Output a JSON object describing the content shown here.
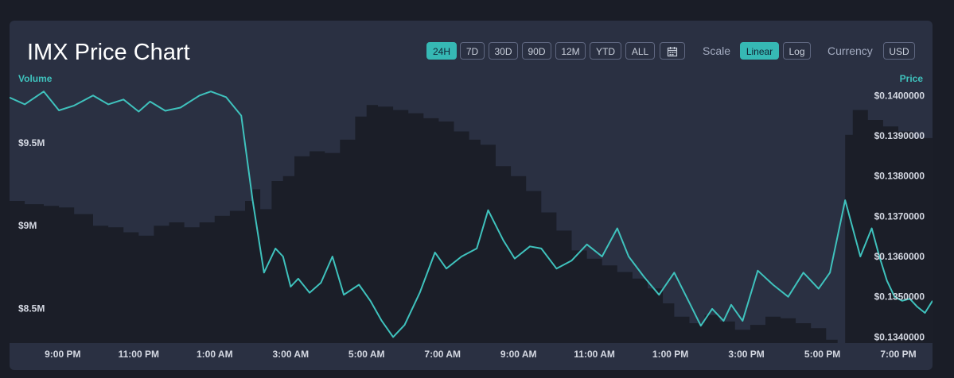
{
  "title": "IMX Price Chart",
  "ranges": [
    "24H",
    "7D",
    "30D",
    "90D",
    "12M",
    "YTD",
    "ALL"
  ],
  "active_range": "24H",
  "calendar_icon": "calendar-icon",
  "scale": {
    "label": "Scale",
    "options": [
      "Linear",
      "Log"
    ],
    "active": "Linear"
  },
  "currency": {
    "label": "Currency",
    "value": "USD"
  },
  "colors": {
    "accent": "#36b8b4",
    "price_line": "#3fc2bd",
    "volume_fill": "#1b1e28",
    "card": "#2a3042"
  },
  "chart_data": {
    "type": "line",
    "title": "IMX Price Chart",
    "ylabel_left": "Volume",
    "ylabel_right": "Price",
    "x_ticks": [
      "9:00 PM",
      "11:00 PM",
      "1:00 AM",
      "3:00 AM",
      "5:00 AM",
      "7:00 AM",
      "9:00 AM",
      "11:00 AM",
      "1:00 PM",
      "3:00 PM",
      "5:00 PM",
      "7:00 PM"
    ],
    "x_range": [
      19.6,
      43.9
    ],
    "price_ticks": [
      "$0.1400000",
      "$0.1390000",
      "$0.1380000",
      "$0.1370000",
      "$0.1360000",
      "$0.1350000",
      "$0.1340000"
    ],
    "price_ylim": [
      0.13385,
      0.14038
    ],
    "volume_ticks": [
      "$9.5M",
      "$9M",
      "$8.5M"
    ],
    "volume_ylim": [
      8.29,
      9.88
    ],
    "grid": false,
    "series": [
      {
        "name": "Price",
        "x": [
          19.6,
          20.0,
          20.5,
          20.9,
          21.3,
          21.8,
          22.2,
          22.6,
          23.0,
          23.3,
          23.7,
          24.1,
          24.6,
          24.9,
          25.3,
          25.7,
          26.0,
          26.3,
          26.6,
          26.8,
          27.0,
          27.2,
          27.5,
          27.8,
          28.1,
          28.4,
          28.8,
          29.1,
          29.4,
          29.7,
          30.0,
          30.4,
          30.8,
          31.1,
          31.5,
          31.9,
          32.2,
          32.6,
          32.9,
          33.3,
          33.6,
          34.0,
          34.4,
          34.8,
          35.2,
          35.6,
          35.9,
          36.3,
          36.7,
          37.1,
          37.5,
          37.8,
          38.1,
          38.4,
          38.6,
          38.9,
          39.3,
          39.7,
          40.1,
          40.5,
          40.9,
          41.2,
          41.6,
          42.0,
          42.3,
          42.5,
          42.7,
          42.9,
          43.1,
          43.3,
          43.5,
          43.7,
          43.9
        ],
        "values": [
          0.13995,
          0.13978,
          0.1401,
          0.13963,
          0.13975,
          0.14,
          0.13978,
          0.1399,
          0.1396,
          0.13985,
          0.13962,
          0.1397,
          0.14,
          0.1401,
          0.13996,
          0.1395,
          0.1374,
          0.1356,
          0.1362,
          0.136,
          0.13525,
          0.13545,
          0.1351,
          0.13535,
          0.136,
          0.13505,
          0.1353,
          0.1349,
          0.1344,
          0.134,
          0.1343,
          0.1351,
          0.1361,
          0.1357,
          0.136,
          0.1362,
          0.13715,
          0.1364,
          0.13595,
          0.13625,
          0.1362,
          0.1357,
          0.1359,
          0.1363,
          0.136,
          0.1367,
          0.136,
          0.1355,
          0.13505,
          0.1356,
          0.13485,
          0.13428,
          0.1347,
          0.1344,
          0.1348,
          0.1344,
          0.13565,
          0.1353,
          0.135,
          0.1356,
          0.1352,
          0.1356,
          0.1374,
          0.136,
          0.1367,
          0.136,
          0.1354,
          0.135,
          0.1349,
          0.13495,
          0.13475,
          0.1346,
          0.1349
        ]
      },
      {
        "name": "Volume",
        "x": [
          19.6,
          20.0,
          20.5,
          20.9,
          21.3,
          21.8,
          22.2,
          22.6,
          23.0,
          23.4,
          23.8,
          24.2,
          24.6,
          25.0,
          25.4,
          25.8,
          26.0,
          26.2,
          26.5,
          26.8,
          27.1,
          27.5,
          27.9,
          28.3,
          28.7,
          29.0,
          29.3,
          29.7,
          30.1,
          30.5,
          30.9,
          31.3,
          31.7,
          32.0,
          32.4,
          32.8,
          33.2,
          33.6,
          34.0,
          34.4,
          34.8,
          35.2,
          35.6,
          36.0,
          36.4,
          36.8,
          37.1,
          37.5,
          37.9,
          38.3,
          38.7,
          39.1,
          39.5,
          39.9,
          40.3,
          40.7,
          41.1,
          41.4,
          41.6,
          41.8,
          42.2,
          42.6,
          43.0,
          43.4,
          43.9
        ],
        "values": [
          9.15,
          9.13,
          9.12,
          9.11,
          9.07,
          9.0,
          8.99,
          8.96,
          8.94,
          9.0,
          9.02,
          8.99,
          9.02,
          9.06,
          9.09,
          9.15,
          9.22,
          9.1,
          9.27,
          9.3,
          9.42,
          9.45,
          9.44,
          9.52,
          9.66,
          9.73,
          9.72,
          9.7,
          9.68,
          9.65,
          9.63,
          9.57,
          9.52,
          9.49,
          9.36,
          9.3,
          9.21,
          9.08,
          8.97,
          8.85,
          8.8,
          8.76,
          8.72,
          8.68,
          8.62,
          8.53,
          8.45,
          8.41,
          8.46,
          8.42,
          8.37,
          8.4,
          8.45,
          8.44,
          8.41,
          8.38,
          8.31,
          8.29,
          9.55,
          9.7,
          9.64,
          9.6,
          9.57,
          9.53,
          9.68
        ]
      }
    ]
  }
}
